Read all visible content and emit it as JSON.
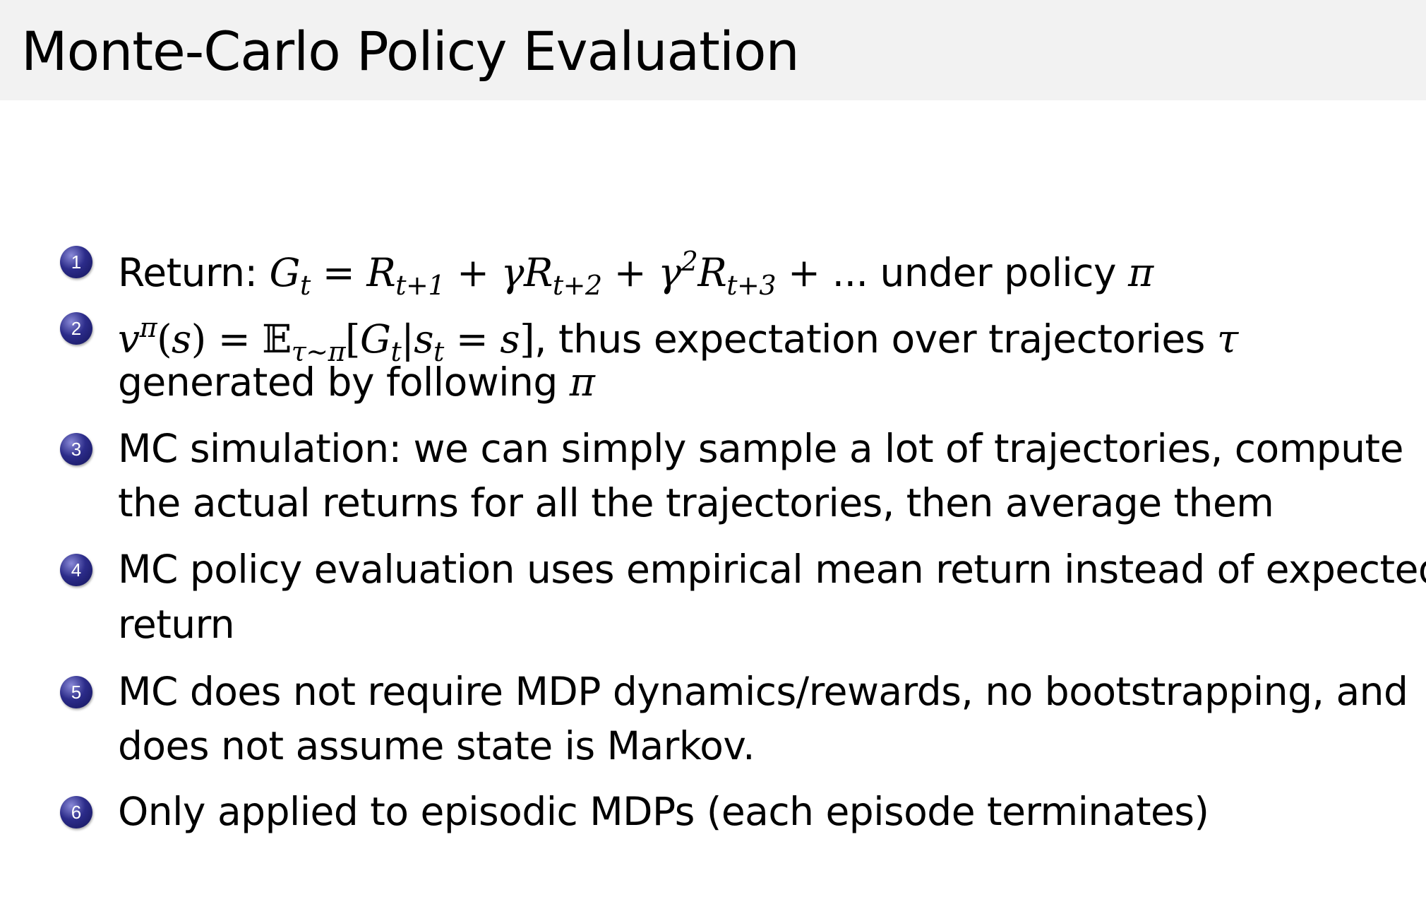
{
  "title": "Monte-Carlo Policy Evaluation",
  "colors": {
    "titlebar": "#f2f2f2",
    "bullet": "#2c2c8a"
  },
  "items": [
    {
      "number": "1",
      "lines": [
        [
          {
            "k": "text",
            "t": "Return:  "
          },
          {
            "k": "m",
            "t": "G"
          },
          {
            "k": "sub",
            "t": "t"
          },
          {
            "k": "r",
            "t": " = "
          },
          {
            "k": "m",
            "t": "R"
          },
          {
            "k": "sub",
            "t": "t+1"
          },
          {
            "k": "r",
            "t": " + "
          },
          {
            "k": "m",
            "t": "γR"
          },
          {
            "k": "sub",
            "t": "t+2"
          },
          {
            "k": "r",
            "t": " + "
          },
          {
            "k": "m",
            "t": "γ"
          },
          {
            "k": "sup",
            "t": "2"
          },
          {
            "k": "m",
            "t": "R"
          },
          {
            "k": "sub",
            "t": "t+3"
          },
          {
            "k": "r",
            "t": " + "
          },
          {
            "k": "text",
            "t": "... under policy "
          },
          {
            "k": "m",
            "t": "π"
          }
        ]
      ]
    },
    {
      "number": "2",
      "lines": [
        [
          {
            "k": "m",
            "t": "v"
          },
          {
            "k": "sup",
            "t": "π"
          },
          {
            "k": "r",
            "t": "("
          },
          {
            "k": "m",
            "t": "s"
          },
          {
            "k": "r",
            "t": ") = 𝔼"
          },
          {
            "k": "sub",
            "t": "τ∼π"
          },
          {
            "k": "r",
            "t": "["
          },
          {
            "k": "m",
            "t": "G"
          },
          {
            "k": "sub",
            "t": "t"
          },
          {
            "k": "r",
            "t": "|"
          },
          {
            "k": "m",
            "t": "s"
          },
          {
            "k": "sub",
            "t": "t"
          },
          {
            "k": "r",
            "t": " = "
          },
          {
            "k": "m",
            "t": "s"
          },
          {
            "k": "r",
            "t": "]"
          },
          {
            "k": "text",
            "t": ", thus expectation over trajectories "
          },
          {
            "k": "m",
            "t": "τ"
          }
        ],
        [
          {
            "k": "text",
            "t": "generated by following "
          },
          {
            "k": "m",
            "t": "π"
          }
        ]
      ]
    },
    {
      "number": "3",
      "lines": [
        [
          {
            "k": "text",
            "t": "MC simulation:  we can simply sample a lot of trajectories, compute"
          }
        ],
        [
          {
            "k": "text",
            "t": "the actual returns for all the trajectories, then average them"
          }
        ]
      ]
    },
    {
      "number": "4",
      "lines": [
        [
          {
            "k": "text",
            "t": "MC policy evaluation uses empirical mean return instead of expected"
          }
        ],
        [
          {
            "k": "text",
            "t": "return"
          }
        ]
      ]
    },
    {
      "number": "5",
      "lines": [
        [
          {
            "k": "text",
            "t": "MC does not require MDP dynamics/rewards, no bootstrapping, and"
          }
        ],
        [
          {
            "k": "text",
            "t": "does not assume state is Markov."
          }
        ]
      ]
    },
    {
      "number": "6",
      "lines": [
        [
          {
            "k": "text",
            "t": "Only applied to episodic MDPs (each episode terminates)"
          }
        ]
      ]
    }
  ]
}
